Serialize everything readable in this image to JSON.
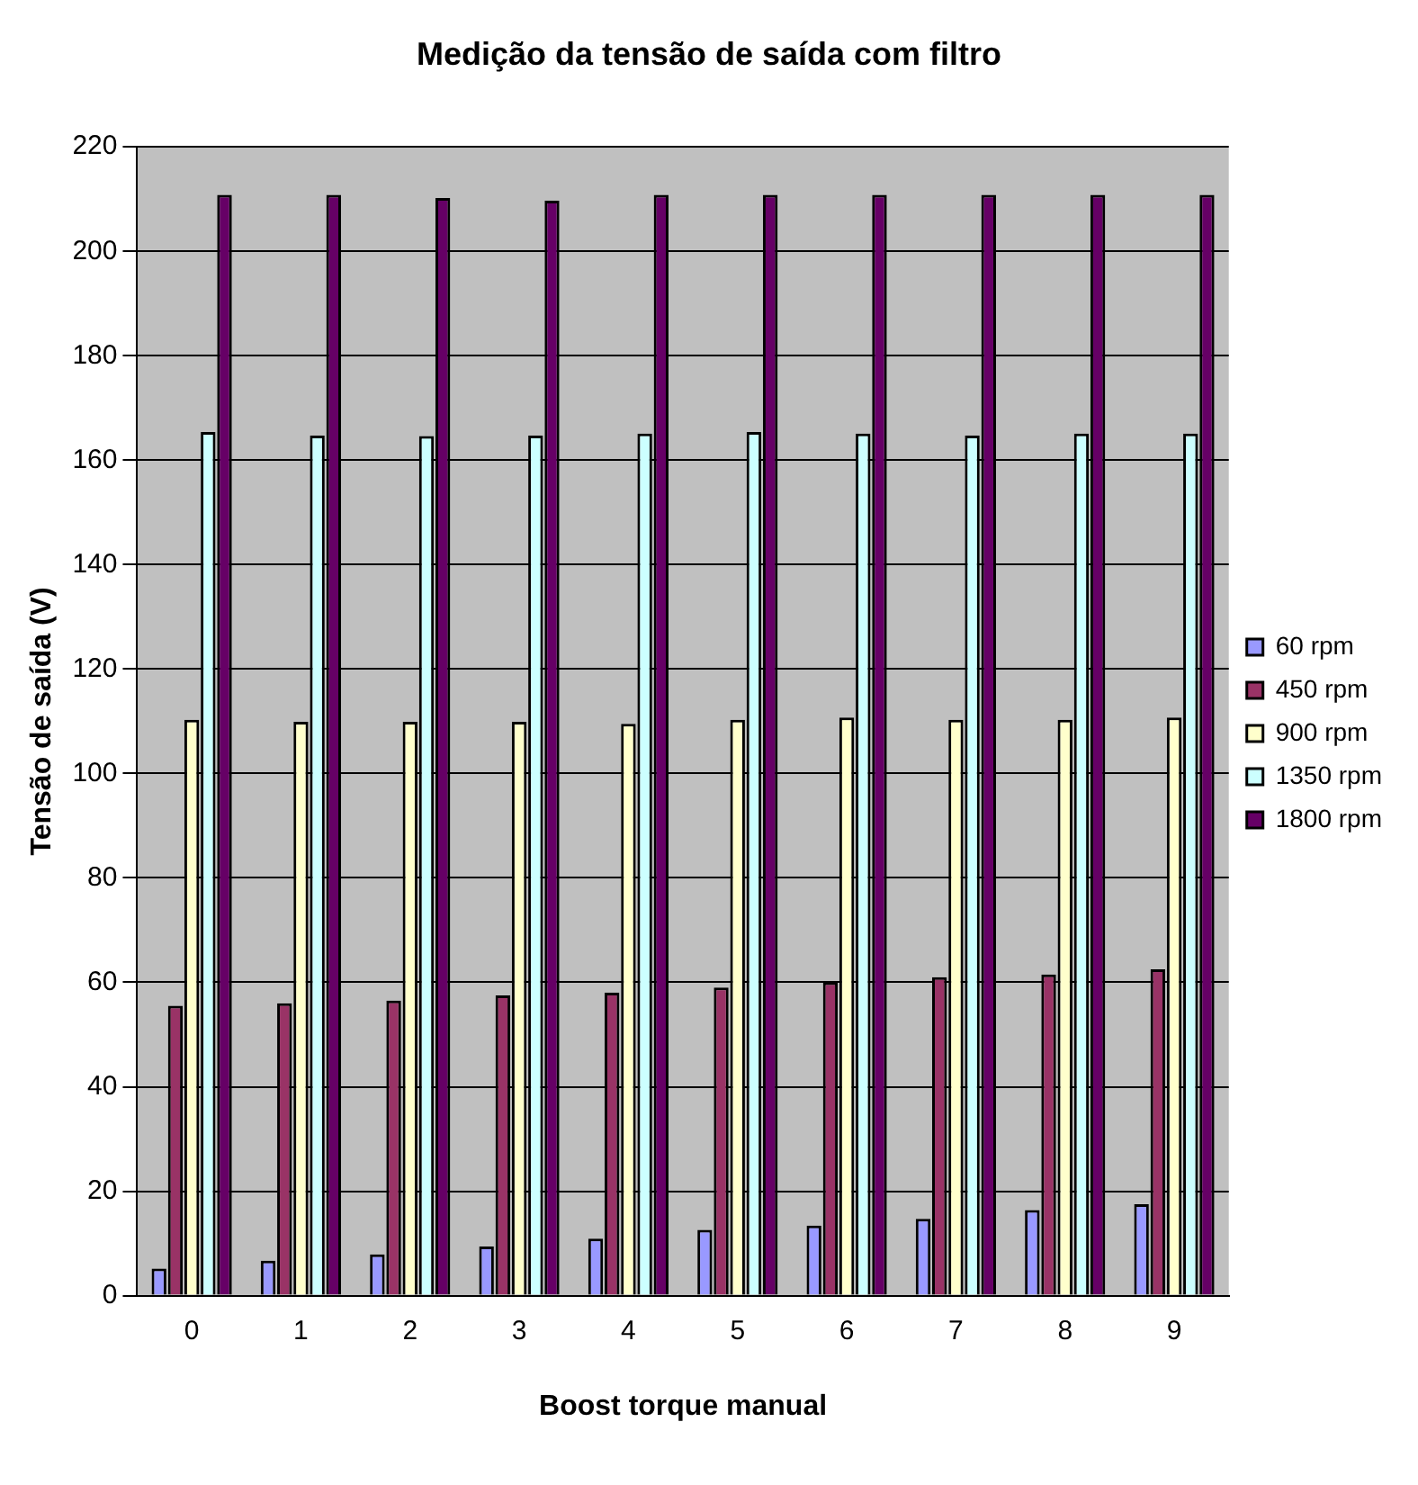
{
  "chart_data": {
    "type": "bar",
    "title": "Medição da tensão de saída com filtro",
    "xlabel": "Boost torque manual",
    "ylabel": "Tensão de saída (V)",
    "categories": [
      "0",
      "1",
      "2",
      "3",
      "4",
      "5",
      "6",
      "7",
      "8",
      "9"
    ],
    "series": [
      {
        "name": "60 rpm",
        "color": "#9999ff",
        "values": [
          5.2,
          6.7,
          7.9,
          9.4,
          10.9,
          12.6,
          13.4,
          14.7,
          16.4,
          17.5
        ]
      },
      {
        "name": "450 rpm",
        "color": "#993366",
        "values": [
          55.5,
          56,
          56.5,
          57.5,
          58,
          59,
          60,
          61,
          61.5,
          62.5
        ]
      },
      {
        "name": "900 rpm",
        "color": "#ffffcc",
        "values": [
          110.3,
          109.9,
          109.9,
          109.9,
          109.5,
          110.3,
          110.7,
          110.3,
          110.3,
          110.7
        ]
      },
      {
        "name": "1350 rpm",
        "color": "#ccffff",
        "values": [
          165.4,
          164.7,
          164.6,
          164.7,
          165.1,
          165.4,
          165.1,
          164.7,
          165.1,
          165.1
        ]
      },
      {
        "name": "1800 rpm",
        "color": "#660066",
        "values": [
          210.8,
          210.8,
          210.2,
          209.7,
          210.8,
          210.8,
          210.8,
          210.8,
          210.8,
          210.8
        ]
      }
    ],
    "ylim": [
      0,
      220
    ],
    "yticks": [
      0,
      20,
      40,
      60,
      80,
      100,
      120,
      140,
      160,
      180,
      200,
      220
    ],
    "grid": "y",
    "legend": "right"
  }
}
